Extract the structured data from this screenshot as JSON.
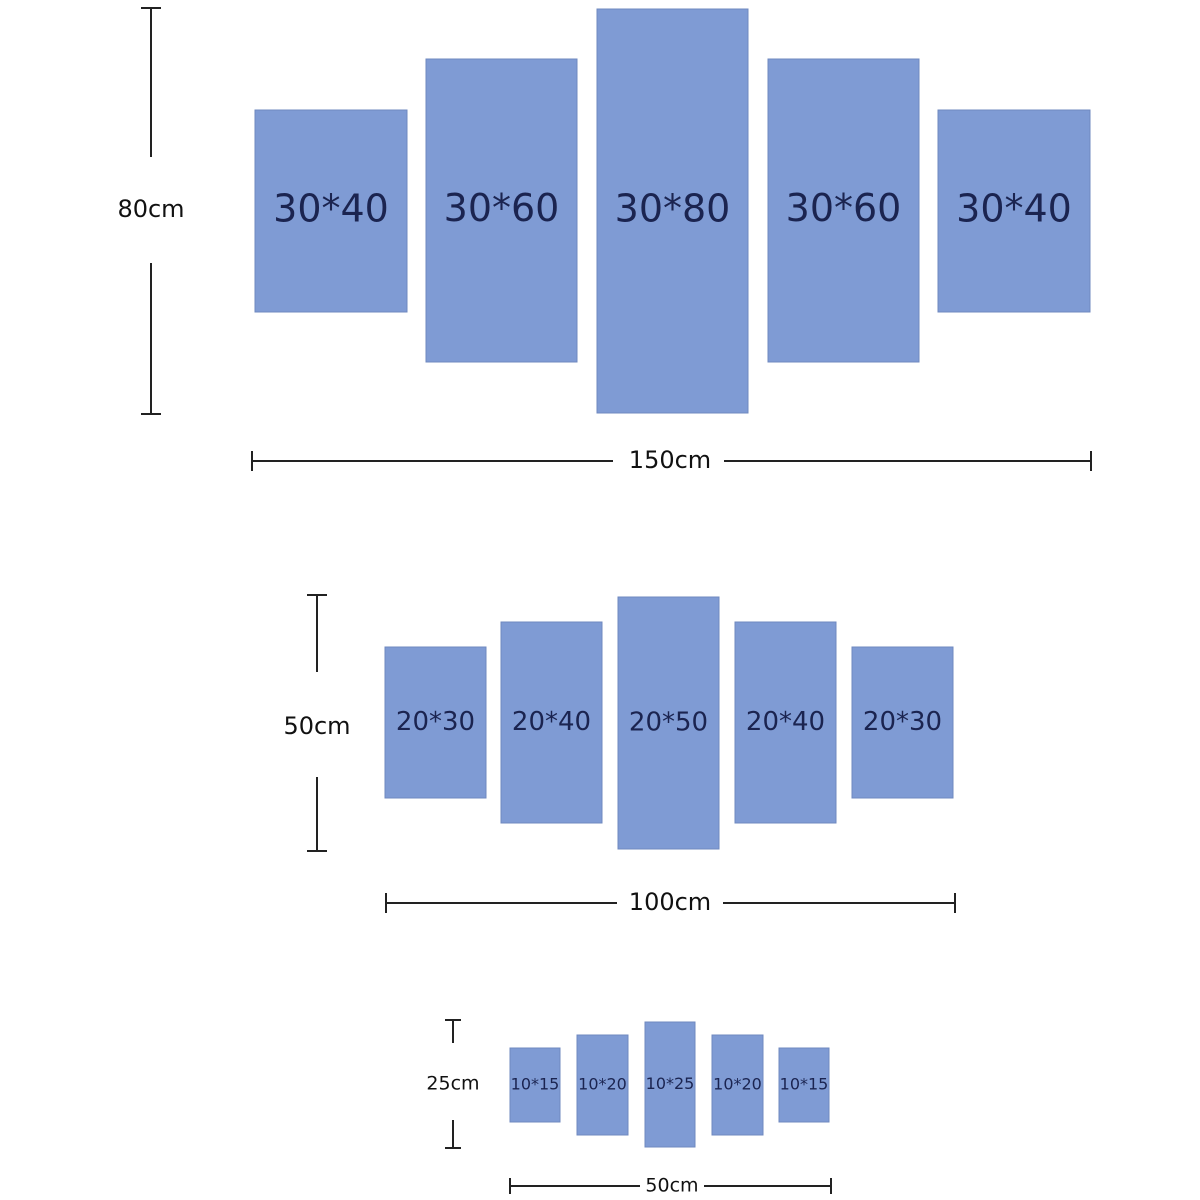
{
  "groups": [
    {
      "height_label": "80cm",
      "width_label": "150cm",
      "panels": [
        "30*40",
        "30*60",
        "30*80",
        "30*60",
        "30*40"
      ]
    },
    {
      "height_label": "50cm",
      "width_label": "100cm",
      "panels": [
        "20*30",
        "20*40",
        "20*50",
        "20*40",
        "20*30"
      ]
    },
    {
      "height_label": "25cm",
      "width_label": "50cm",
      "panels": [
        "10*15",
        "10*20",
        "10*25",
        "10*20",
        "10*15"
      ]
    }
  ]
}
